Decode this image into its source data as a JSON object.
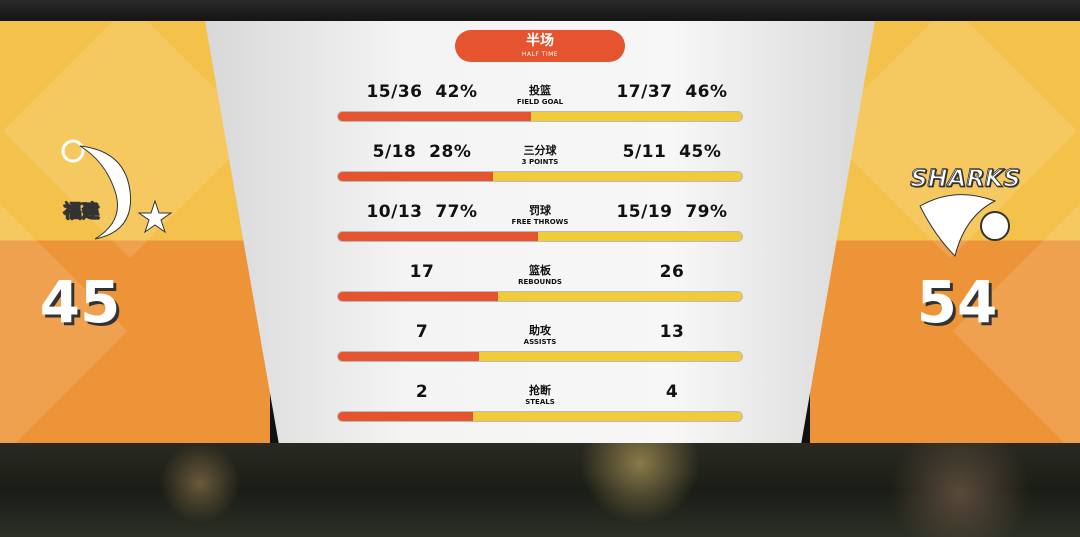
{
  "header": {
    "title_zh": "半场",
    "title_en": "HALF TIME"
  },
  "teams": {
    "home": {
      "logo_text": "福建",
      "score": "45",
      "color": "#f4c24a"
    },
    "away": {
      "logo_text": "SHARKS",
      "score": "54",
      "color": "#ee9438"
    }
  },
  "colors": {
    "home_bar": "#e5532f",
    "away_bar": "#f2cb3b"
  },
  "stats": [
    {
      "zh": "投篮",
      "en": "FIELD GOAL",
      "home": "15/36  42%",
      "away": "17/37  46%",
      "home_share": 0.477
    },
    {
      "zh": "三分球",
      "en": "3 POINTS",
      "home": "5/18  28%",
      "away": "5/11  45%",
      "home_share": 0.384
    },
    {
      "zh": "罚球",
      "en": "FREE THROWS",
      "home": "10/13  77%",
      "away": "15/19  79%",
      "home_share": 0.494
    },
    {
      "zh": "篮板",
      "en": "REBOUNDS",
      "home": "17",
      "away": "26",
      "home_share": 0.395
    },
    {
      "zh": "助攻",
      "en": "ASSISTS",
      "home": "7",
      "away": "13",
      "home_share": 0.35
    },
    {
      "zh": "抢断",
      "en": "STEALS",
      "home": "2",
      "away": "4",
      "home_share": 0.333
    }
  ]
}
